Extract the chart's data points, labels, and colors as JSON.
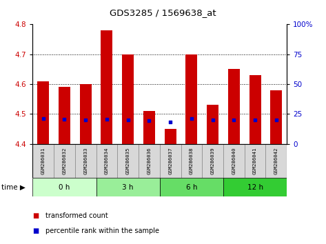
{
  "title": "GDS3285 / 1569638_at",
  "samples": [
    "GSM286031",
    "GSM286032",
    "GSM286033",
    "GSM286034",
    "GSM286035",
    "GSM286036",
    "GSM286037",
    "GSM286038",
    "GSM286039",
    "GSM286040",
    "GSM286041",
    "GSM286042"
  ],
  "red_values": [
    4.61,
    4.59,
    4.6,
    4.78,
    4.7,
    4.51,
    4.45,
    4.7,
    4.53,
    4.65,
    4.63,
    4.58
  ],
  "blue_values": [
    4.484,
    4.482,
    4.48,
    4.483,
    4.481,
    4.479,
    4.474,
    4.485,
    4.48,
    4.481,
    4.481,
    4.481
  ],
  "y_min": 4.4,
  "y_max": 4.8,
  "y_ticks": [
    4.4,
    4.5,
    4.6,
    4.7,
    4.8
  ],
  "y_right_ticks": [
    0,
    25,
    50,
    75,
    100
  ],
  "y_right_labels": [
    "0",
    "25",
    "50",
    "75",
    "100%"
  ],
  "groups": [
    {
      "label": "0 h",
      "start": 0,
      "end": 3,
      "color": "#ccffcc"
    },
    {
      "label": "3 h",
      "start": 3,
      "end": 6,
      "color": "#99ee99"
    },
    {
      "label": "6 h",
      "start": 6,
      "end": 9,
      "color": "#66dd66"
    },
    {
      "label": "12 h",
      "start": 9,
      "end": 12,
      "color": "#33cc33"
    }
  ],
  "bar_color": "#cc0000",
  "dot_color": "#0000cc",
  "bar_bottom": 4.4,
  "bar_width": 0.55,
  "dot_size": 12,
  "legend_red": "transformed count",
  "legend_blue": "percentile rank within the sample",
  "tick_label_color_left": "#cc0000",
  "tick_label_color_right": "#0000cc",
  "grid_yticks": [
    4.5,
    4.6,
    4.7
  ]
}
